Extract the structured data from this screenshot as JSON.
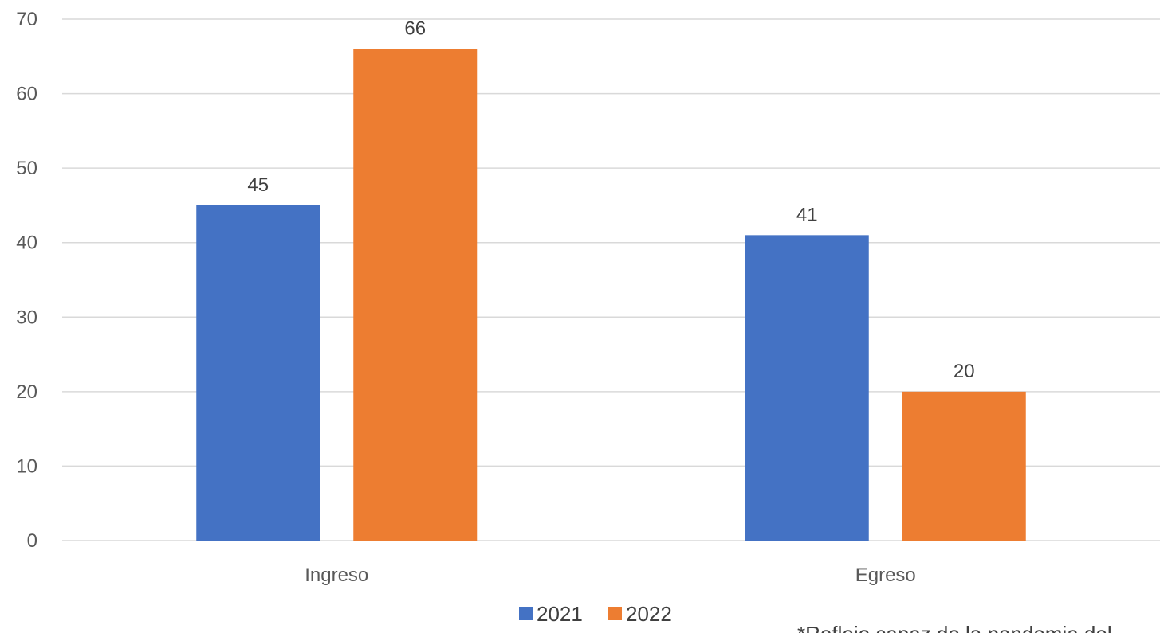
{
  "chart_data": {
    "type": "bar",
    "categories": [
      "Ingreso",
      "Egreso"
    ],
    "series": [
      {
        "name": "2021",
        "values": [
          45,
          41
        ],
        "color": "#4472C4"
      },
      {
        "name": "2022",
        "values": [
          66,
          20
        ],
        "color": "#ED7D31"
      }
    ],
    "ylim": [
      0,
      70
    ],
    "yticks": [
      0,
      10,
      20,
      30,
      40,
      50,
      60,
      70
    ],
    "grid": true,
    "legend_position": "bottom",
    "data_labels": true,
    "gridline_color": "#D9D9D9"
  },
  "footnote": "*Reflejo capaz de la pandemia del"
}
